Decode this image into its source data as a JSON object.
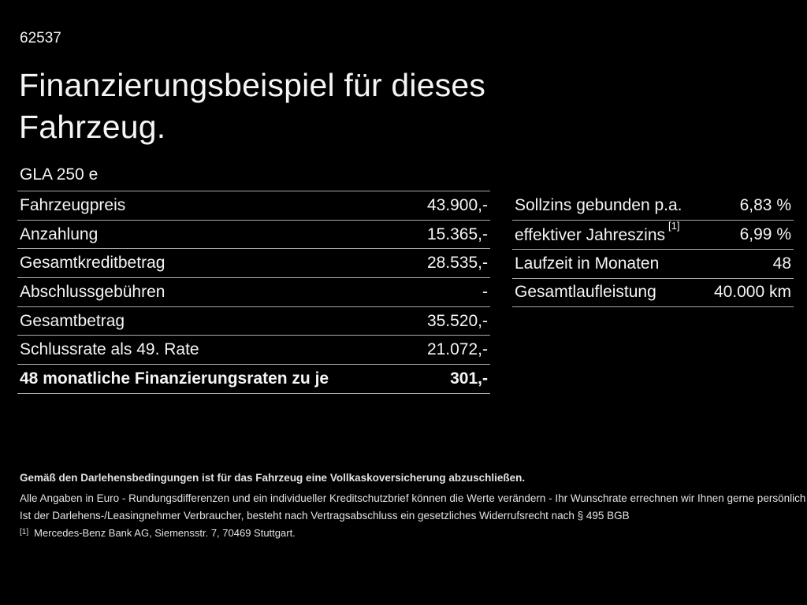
{
  "colors": {
    "background": "#000000",
    "text": "#f5f5f5",
    "divider": "#aaaaaa",
    "footer_text": "#e3e3e3"
  },
  "header": {
    "code": "62537",
    "title_line1": "Finanzierungsbeispiel für dieses",
    "title_line2": "Fahrzeug.",
    "model": "GLA 250 e"
  },
  "finance_table": {
    "rows": [
      {
        "label": "Fahrzeugpreis",
        "value": "43.900,-"
      },
      {
        "label": "Anzahlung",
        "value": "15.365,-"
      },
      {
        "label": "Gesamtkreditbetrag",
        "value": "28.535,-"
      },
      {
        "label": "Abschlussgebühren",
        "value": "-"
      },
      {
        "label": "Gesamtbetrag",
        "value": "35.520,-"
      },
      {
        "label": "Schlussrate als 49. Rate",
        "value": "21.072,-"
      },
      {
        "label": "48 monatliche Finanzierungsraten zu je",
        "value": "301,-"
      }
    ]
  },
  "conditions_table": {
    "rows": [
      {
        "label": "Sollzins gebunden p.a.",
        "sup": "",
        "value": "6,83 %"
      },
      {
        "label": "effektiver Jahreszins",
        "sup": "[1]",
        "value": "6,99 %"
      },
      {
        "label": "Laufzeit in Monaten",
        "sup": "",
        "value": "48"
      },
      {
        "label": "Gesamtlaufleistung",
        "sup": "",
        "value": "40.000 km"
      }
    ]
  },
  "footer": {
    "insurance_note": "Gemäß den Darlehensbedingungen ist für das Fahrzeug eine Vollkaskoversicherung abzuschließen.",
    "disclaimer_line1": "Alle Angaben in Euro - Rundungsdifferenzen und ein individueller Kreditschutzbrief können die Werte verändern - Ihr Wunschrate errechnen wir Ihnen gerne persönlich",
    "disclaimer_line2": "Ist der Darlehens-/Leasingnehmer Verbraucher, besteht nach Vertragsabschluss ein gesetzliches Widerrufsrecht nach § 495 BGB",
    "footnote_marker": "[1]",
    "footnote_text": "Mercedes-Benz Bank AG, Siemensstr. 7, 70469 Stuttgart."
  }
}
